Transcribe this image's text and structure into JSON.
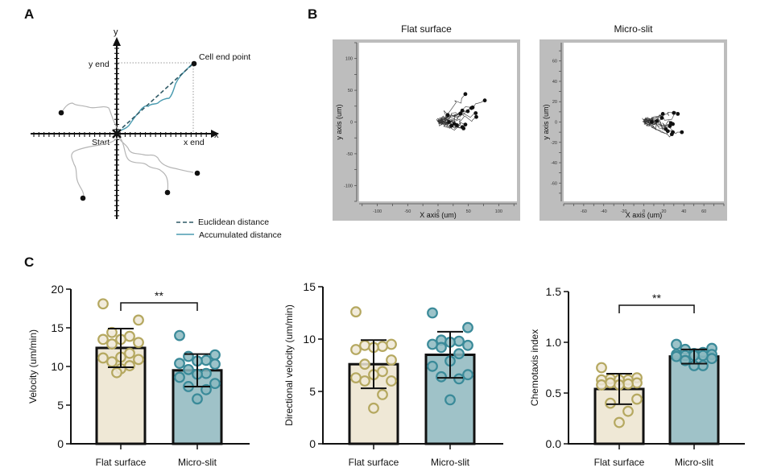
{
  "panels": {
    "a_letter": "A",
    "b_letter": "B",
    "c_letter": "C"
  },
  "schematic": {
    "x_label": "x",
    "y_label": "y",
    "y_end_label": "y end",
    "x_end_label": "x end",
    "start_label": "Start",
    "end_point_label": "Cell end point",
    "legend": [
      {
        "label": "Euclidean distance",
        "style": "dashed",
        "color": "#2f5a66"
      },
      {
        "label": "Accumulated distance",
        "style": "solid",
        "color": "#4a9bb0"
      }
    ],
    "colors": {
      "axis": "#111111",
      "track": "#b5b5b5",
      "dot": "#111111",
      "guide": "#999999"
    }
  },
  "chart_data": [
    {
      "type": "line",
      "title": "Flat surface",
      "xlabel": "X axis (um)",
      "ylabel": "y axis (um)",
      "xlim": [
        -130,
        130
      ],
      "ylim": [
        -125,
        125
      ],
      "xticks": [
        -100,
        -50,
        0,
        50,
        100
      ],
      "yticks": [
        100,
        50,
        0,
        -50,
        -100
      ],
      "grid": false,
      "series_description": "cell migration trajectories from origin",
      "endpoints": [
        [
          45,
          44
        ],
        [
          77,
          34
        ],
        [
          57,
          23
        ],
        [
          55,
          22
        ],
        [
          49,
          17
        ],
        [
          40,
          18
        ],
        [
          16,
          11
        ],
        [
          37,
          13
        ],
        [
          62,
          14
        ],
        [
          63,
          8
        ],
        [
          22,
          -6
        ],
        [
          31,
          -5
        ],
        [
          40,
          -8
        ],
        [
          42,
          -10
        ],
        [
          45,
          -4
        ],
        [
          18,
          0
        ],
        [
          27,
          -3
        ]
      ],
      "colors": {
        "frame": "#bdbdbd",
        "plot_bg": "#ffffff",
        "track": "#333333",
        "dot": "#111111"
      }
    },
    {
      "type": "line",
      "title": "Micro-slit",
      "xlabel": "X axis (um)",
      "ylabel": "y axis (um)",
      "xlim": [
        -80,
        80
      ],
      "ylim": [
        -78,
        78
      ],
      "xticks": [
        -60,
        -40,
        -20,
        0,
        20,
        40,
        60
      ],
      "yticks": [
        60,
        40,
        20,
        0,
        -20,
        -40,
        -60
      ],
      "grid": false,
      "series_description": "cell migration trajectories from origin",
      "endpoints": [
        [
          19,
          8
        ],
        [
          30,
          9
        ],
        [
          34,
          8
        ],
        [
          18,
          4
        ],
        [
          13,
          1
        ],
        [
          27,
          -1
        ],
        [
          29,
          -2
        ],
        [
          26,
          -4
        ],
        [
          22,
          -7
        ],
        [
          24,
          -9
        ],
        [
          29,
          -10
        ],
        [
          28,
          -12
        ],
        [
          38,
          -10
        ],
        [
          8,
          0
        ]
      ],
      "colors": {
        "frame": "#bdbdbd",
        "plot_bg": "#ffffff",
        "track": "#333333",
        "dot": "#111111"
      }
    },
    {
      "type": "bar",
      "title": "",
      "xlabel": "",
      "ylabel": "Velocity (um/min)",
      "ylim": [
        0,
        20
      ],
      "yticks": [
        0,
        5,
        10,
        15,
        20
      ],
      "categories": [
        "Flat surface",
        "Micro-slit"
      ],
      "values": [
        12.4,
        9.5
      ],
      "errors": [
        2.5,
        2.1
      ],
      "points": [
        [
          18.1,
          16.0,
          14.4,
          13.9,
          13.5,
          13.5,
          13.1,
          12.9,
          11.7,
          11.2,
          11.1,
          10.9,
          10.6,
          10.1,
          9.7,
          9.2
        ],
        [
          14.0,
          11.5,
          11.3,
          10.8,
          10.7,
          10.4,
          10.3,
          9.6,
          9.1,
          9.0,
          8.6,
          7.8,
          7.4,
          7.0,
          5.8
        ]
      ],
      "significance": "**",
      "significance_pair": [
        0,
        1
      ]
    },
    {
      "type": "bar",
      "title": "",
      "xlabel": "",
      "ylabel": "Directional velocity (um/min)",
      "ylim": [
        0,
        15
      ],
      "yticks": [
        0,
        5,
        10,
        15
      ],
      "categories": [
        "Flat surface",
        "Micro-slit"
      ],
      "values": [
        7.6,
        8.5
      ],
      "errors": [
        2.3,
        2.2
      ],
      "points": [
        [
          12.6,
          9.5,
          9.4,
          9.3,
          9.2,
          9.0,
          8.0,
          7.6,
          6.9,
          6.6,
          6.3,
          6.0,
          6.0,
          4.7,
          3.4
        ],
        [
          12.5,
          11.1,
          9.9,
          9.8,
          9.7,
          9.5,
          9.4,
          9.2,
          8.6,
          7.9,
          7.4,
          6.6,
          6.4,
          6.2,
          4.2
        ]
      ],
      "significance": "",
      "significance_pair": []
    },
    {
      "type": "bar",
      "title": "",
      "xlabel": "",
      "ylabel": "Chemotaxis index",
      "ylim": [
        0,
        1.5
      ],
      "yticks": [
        0.0,
        0.5,
        1.0,
        1.5
      ],
      "categories": [
        "Flat surface",
        "Micro-slit"
      ],
      "values": [
        0.54,
        0.86
      ],
      "errors": [
        0.15,
        0.07
      ],
      "points": [
        [
          0.75,
          0.65,
          0.64,
          0.63,
          0.63,
          0.63,
          0.6,
          0.6,
          0.59,
          0.58,
          0.58,
          0.44,
          0.4,
          0.32,
          0.21
        ],
        [
          0.98,
          0.94,
          0.93,
          0.9,
          0.89,
          0.88,
          0.88,
          0.87,
          0.87,
          0.87,
          0.86,
          0.84,
          0.82,
          0.77,
          0.77
        ]
      ],
      "significance": "**",
      "significance_pair": [
        0,
        1
      ]
    }
  ],
  "style": {
    "flat_fill": "#efe8d6",
    "flat_dot": "#b5a860",
    "flat_dot_fill": "#efe8d6",
    "micro_fill": "#9fc2c8",
    "micro_dot": "#3a8a99",
    "micro_dot_fill": "#8bb8bf",
    "ink": "#111111"
  }
}
